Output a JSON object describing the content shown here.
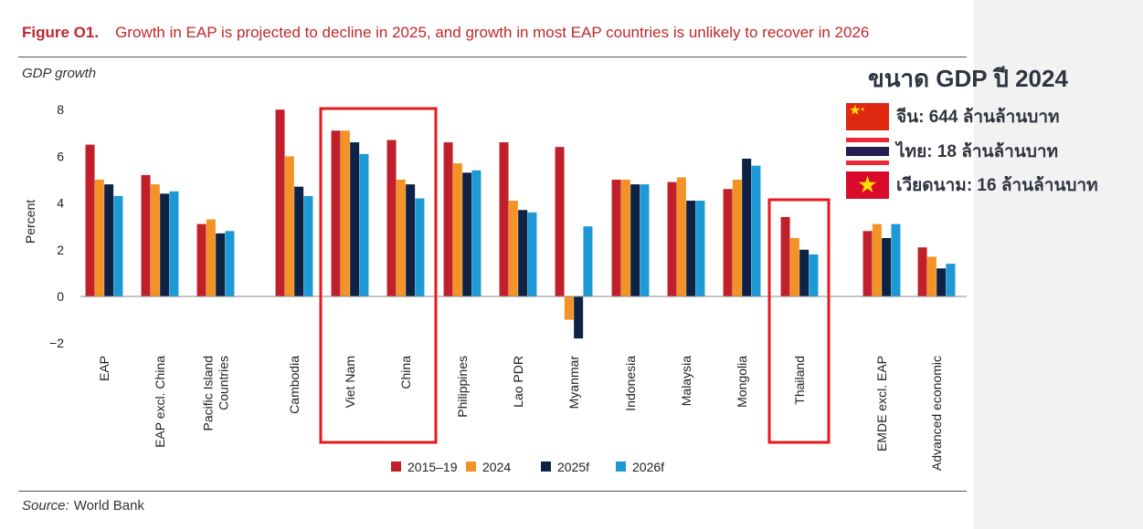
{
  "figure_label": "Figure O1.",
  "figure_title": "Growth in EAP is projected to decline in 2025, and growth in most EAP countries is unlikely to recover in 2026",
  "source_label": "Source:",
  "source_value": "World Bank",
  "chart_data": {
    "type": "bar",
    "title": "GDP growth",
    "ylabel": "Percent",
    "xlabel": "",
    "ylim": [
      -2,
      8
    ],
    "yticks": [
      -2,
      0,
      2,
      4,
      6,
      8
    ],
    "ytick_labels": [
      "−2",
      "0",
      "2",
      "4",
      "6",
      "8"
    ],
    "grid": false,
    "legend_position": "bottom",
    "categories": [
      "EAP",
      "EAP excl. China",
      "Pacific Island Countries",
      "Cambodia",
      "Viet Nam",
      "China",
      "Philippines",
      "Lao PDR",
      "Myanmar",
      "Indonesia",
      "Malaysia",
      "Mongolia",
      "Thailand",
      "EMDE excl. EAP",
      "Advanced economic"
    ],
    "series": [
      {
        "name": "2015–19",
        "color": "#c1202b",
        "values": [
          6.5,
          5.2,
          3.1,
          8.0,
          7.1,
          6.7,
          6.6,
          6.6,
          6.4,
          5.0,
          4.9,
          4.6,
          3.4,
          2.8,
          2.1
        ]
      },
      {
        "name": "2024",
        "color": "#f39325",
        "values": [
          5.0,
          4.8,
          3.3,
          6.0,
          7.1,
          5.0,
          5.7,
          4.1,
          -1.0,
          5.0,
          5.1,
          5.0,
          2.5,
          3.1,
          1.7
        ]
      },
      {
        "name": "2025f",
        "color": "#0d2245",
        "values": [
          4.8,
          4.4,
          2.7,
          4.7,
          6.6,
          4.8,
          5.3,
          3.7,
          -1.8,
          4.8,
          4.1,
          5.9,
          2.0,
          2.5,
          1.2
        ]
      },
      {
        "name": "2026f",
        "color": "#1d9ad6",
        "values": [
          4.3,
          4.5,
          2.8,
          4.3,
          6.1,
          4.2,
          5.4,
          3.6,
          3.0,
          4.8,
          4.1,
          5.6,
          1.8,
          3.1,
          1.4
        ]
      }
    ],
    "highlighted": [
      "Viet Nam",
      "China",
      "Thailand"
    ],
    "highlight_color": "#e8191e"
  },
  "gdp_panel": {
    "title": "ขนาด GDP ปี 2024",
    "rows": [
      {
        "flag": "china-flag",
        "text": "จีน: 644 ล้านล้านบาท"
      },
      {
        "flag": "thailand-flag",
        "text": "ไทย: 18 ล้านล้านบาท"
      },
      {
        "flag": "vietnam-flag",
        "text": "เวียดนาม: 16 ล้านล้านบาท"
      }
    ]
  }
}
